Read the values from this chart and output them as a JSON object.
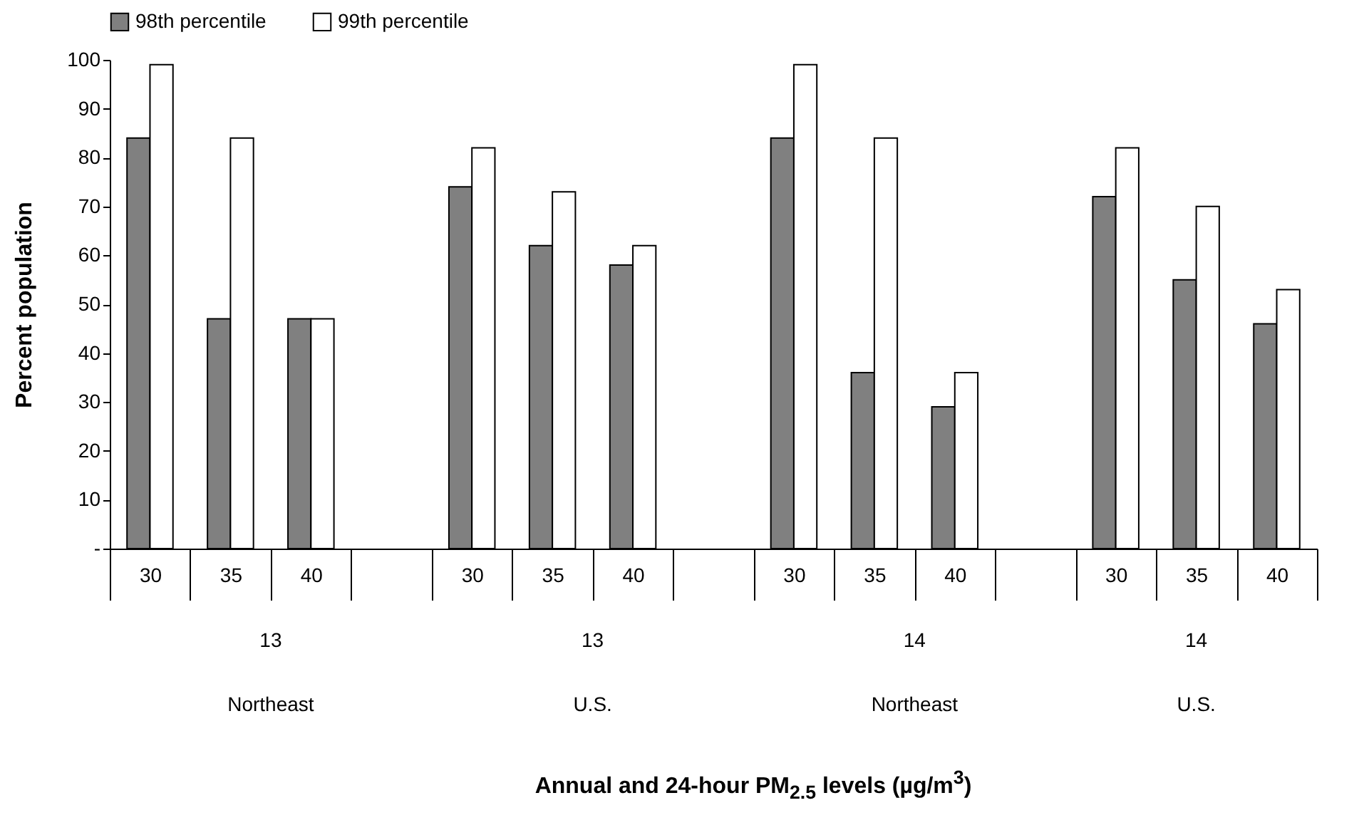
{
  "chart_data": {
    "type": "bar",
    "ylabel": "Percent population",
    "categories": [
      "30",
      "35",
      "40",
      null,
      "30",
      "35",
      "40",
      null,
      "30",
      "35",
      "40",
      null,
      "30",
      "35",
      "40"
    ],
    "series": [
      {
        "name": "98th percentile",
        "color": "#808080",
        "values": [
          84,
          47,
          47,
          null,
          74,
          62,
          58,
          null,
          84,
          36,
          29,
          null,
          72,
          55,
          46
        ]
      },
      {
        "name": "99th percentile",
        "color": "#ffffff",
        "values": [
          99,
          84,
          47,
          null,
          82,
          73,
          62,
          null,
          99,
          84,
          36,
          null,
          82,
          70,
          53
        ]
      }
    ],
    "annotations": [
      "13",
      "Northeast",
      "13",
      "U.S.",
      "14",
      "Northeast",
      "14",
      "U.S.",
      "Annual and 24-hour PM$_{2.5}$ levels (µg/m$^{3}$)"
    ],
    "ylim": [
      0,
      100
    ],
    "yticks": [
      {
        "value": 0,
        "label": "-"
      },
      10,
      20,
      30,
      40,
      50,
      60,
      70,
      80,
      90,
      100
    ],
    "grid": false,
    "legend": "top"
  }
}
